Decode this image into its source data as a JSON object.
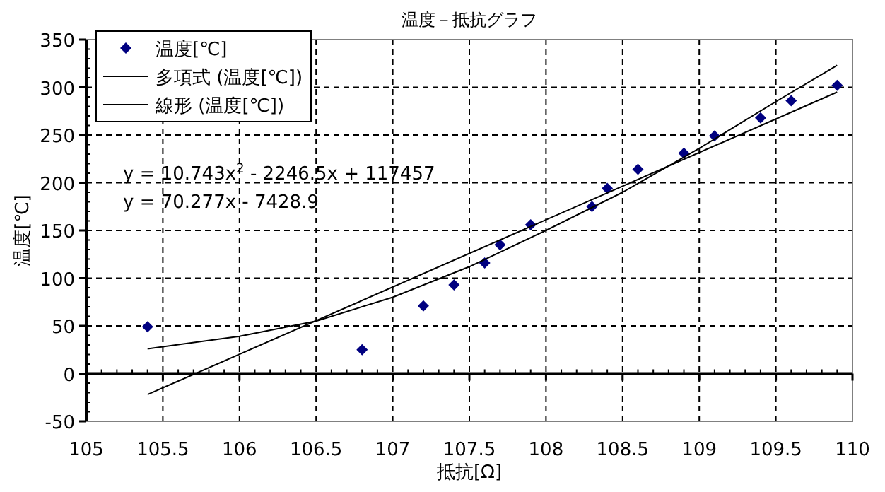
{
  "chart_data": {
    "type": "scatter",
    "title": "温度－抵抗グラフ",
    "xlabel": "抵抗[Ω]",
    "ylabel": "温度[℃]",
    "xlim": [
      105,
      110
    ],
    "xticks": [
      105,
      105.5,
      106,
      106.5,
      107,
      107.5,
      108,
      108.5,
      109,
      109.5,
      110
    ],
    "ylim": [
      -50,
      350
    ],
    "yticks": [
      -50,
      0,
      50,
      100,
      150,
      200,
      250,
      300,
      350
    ],
    "grid": true,
    "legend": "top left",
    "marker": "diamond",
    "annotations": [
      "y = 10.743x$^{2}$ - 2246.5x + 117457",
      "y = 70.277x - 7428.9"
    ],
    "series": [
      {
        "name": "温度[℃]",
        "color": "#000080",
        "x": [
          105.4,
          106.8,
          107.2,
          107.4,
          107.6,
          107.7,
          107.9,
          108.3,
          108.4,
          108.6,
          108.9,
          109.1,
          109.4,
          109.6,
          109.9
        ],
        "values": [
          49,
          25,
          71,
          93,
          116,
          135,
          156,
          175,
          194,
          214,
          231,
          249,
          268,
          286,
          302
        ]
      },
      {
        "name": "多項式 (温度[℃])",
        "type": "line",
        "marker": "none",
        "color": "#000000",
        "x": [
          105.4,
          106,
          106.5,
          107,
          107.5,
          108,
          108.5,
          109,
          109.5,
          109.9
        ],
        "values": [
          26,
          39,
          55,
          80,
          112,
          150,
          190,
          236,
          285,
          323
        ]
      },
      {
        "name": "線形 (温度[℃])",
        "type": "line",
        "marker": "none",
        "color": "#000000",
        "x": [
          105.4,
          109.9
        ],
        "values": [
          -22,
          295
        ]
      }
    ]
  }
}
